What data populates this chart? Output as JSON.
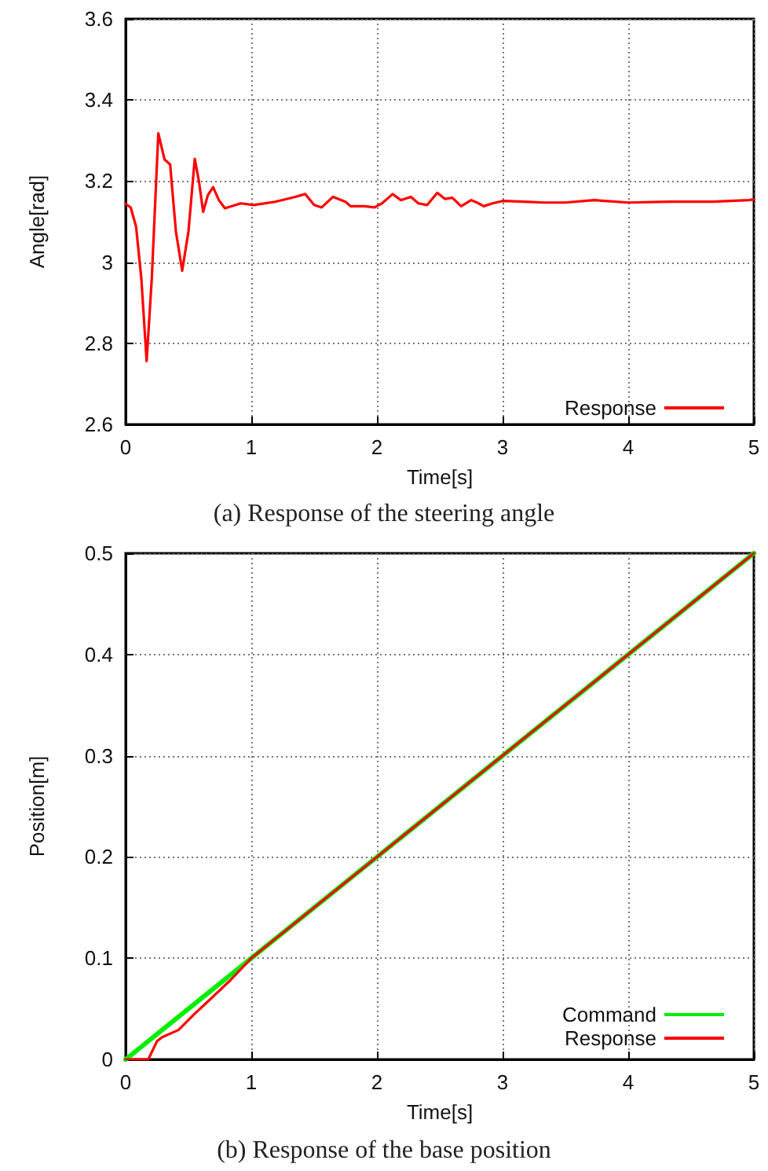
{
  "chart_data": [
    {
      "type": "line",
      "title": "(a) Response of the steering angle",
      "xlabel": "Time[s]",
      "ylabel": "Angle[rad]",
      "xlim": [
        0,
        5
      ],
      "xticks": [
        0,
        1,
        2,
        3,
        4,
        5
      ],
      "ylim": [
        2.6,
        3.6
      ],
      "yticks": [
        2.6,
        2.8,
        3,
        3.2,
        3.4,
        3.6
      ],
      "grid": true,
      "legend": "bottom right",
      "marker": "none",
      "line_style": "solid",
      "series": [
        {
          "name": "Response",
          "color": "#ff0000",
          "x": [
            0,
            0.04,
            0.083,
            0.125,
            0.167,
            0.208,
            0.26,
            0.31,
            0.354,
            0.4,
            0.45,
            0.5,
            0.55,
            0.583,
            0.617,
            0.654,
            0.696,
            0.742,
            0.79,
            0.917,
            1.02,
            1.19,
            1.35,
            1.43,
            1.5,
            1.56,
            1.65,
            1.75,
            1.79,
            1.9,
            1.98,
            2.04,
            2.125,
            2.19,
            2.27,
            2.33,
            2.4,
            2.48,
            2.54,
            2.6,
            2.67,
            2.75,
            2.81,
            2.85,
            2.92,
            3.0,
            3.17,
            3.33,
            3.5,
            3.73,
            4.0,
            4.33,
            4.67,
            4.96,
            5
          ],
          "values": [
            3.144,
            3.135,
            3.088,
            2.959,
            2.756,
            2.959,
            3.318,
            3.253,
            3.241,
            3.076,
            2.979,
            3.076,
            3.255,
            3.2,
            3.124,
            3.165,
            3.185,
            3.153,
            3.133,
            3.145,
            3.141,
            3.149,
            3.161,
            3.168,
            3.141,
            3.135,
            3.161,
            3.149,
            3.138,
            3.138,
            3.135,
            3.145,
            3.168,
            3.153,
            3.161,
            3.145,
            3.141,
            3.171,
            3.156,
            3.159,
            3.138,
            3.153,
            3.145,
            3.138,
            3.145,
            3.151,
            3.149,
            3.147,
            3.147,
            3.153,
            3.147,
            3.149,
            3.149,
            3.153,
            3.155
          ]
        }
      ]
    },
    {
      "type": "line",
      "title": "(b) Response of the base position",
      "xlabel": "Time[s]",
      "ylabel": "Position[m]",
      "xlim": [
        0,
        5
      ],
      "xticks": [
        0,
        1,
        2,
        3,
        4,
        5
      ],
      "ylim": [
        0,
        0.5
      ],
      "yticks": [
        0,
        0.1,
        0.2,
        0.3,
        0.4,
        0.5
      ],
      "grid": true,
      "legend": "bottom right",
      "marker": "none",
      "line_style": "solid",
      "series": [
        {
          "name": "Command",
          "color": "#00ee00",
          "x": [
            0,
            5
          ],
          "values": [
            0,
            0.5
          ]
        },
        {
          "name": "Response",
          "color": "#ff0000",
          "x": [
            0,
            0.18,
            0.25,
            0.29,
            0.42,
            0.54,
            0.67,
            0.84,
            1.0,
            2.0,
            3.0,
            4.0,
            5.0
          ],
          "values": [
            0,
            0,
            0.018,
            0.022,
            0.029,
            0.044,
            0.059,
            0.079,
            0.1,
            0.2,
            0.3,
            0.4,
            0.5
          ]
        }
      ]
    }
  ]
}
